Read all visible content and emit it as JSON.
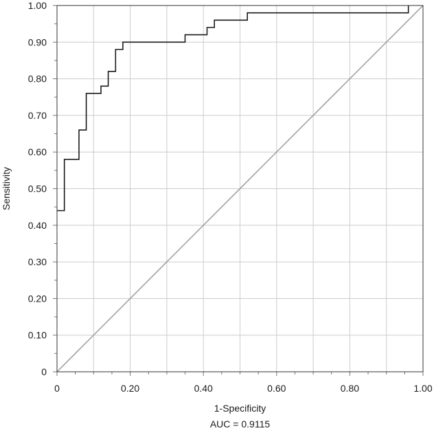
{
  "chart_data": {
    "type": "line",
    "title": "",
    "xlabel": "1-Specificity",
    "ylabel": "Sensitivity",
    "caption": "AUC = 0.9115",
    "xlim": [
      0,
      1
    ],
    "ylim": [
      0,
      1
    ],
    "grid": true,
    "x_ticks": [
      0,
      0.2,
      0.4,
      0.6,
      0.8,
      1.0
    ],
    "x_tick_labels": [
      "0",
      "0.20",
      "0.40",
      "0.60",
      "0.80",
      "1.00"
    ],
    "y_ticks": [
      0,
      0.1,
      0.2,
      0.3,
      0.4,
      0.5,
      0.6,
      0.7,
      0.8,
      0.9,
      1.0
    ],
    "y_tick_labels": [
      "0",
      "0.10",
      "0.20",
      "0.30",
      "0.40",
      "0.50",
      "0.60",
      "0.70",
      "0.80",
      "0.90",
      "1.00"
    ],
    "series": [
      {
        "style": "step",
        "color": "#1a1a1a",
        "points": [
          [
            0.0,
            0.44
          ],
          [
            0.02,
            0.44
          ],
          [
            0.02,
            0.58
          ],
          [
            0.06,
            0.58
          ],
          [
            0.06,
            0.66
          ],
          [
            0.08,
            0.66
          ],
          [
            0.08,
            0.76
          ],
          [
            0.12,
            0.76
          ],
          [
            0.12,
            0.78
          ],
          [
            0.14,
            0.78
          ],
          [
            0.14,
            0.82
          ],
          [
            0.16,
            0.82
          ],
          [
            0.16,
            0.88
          ],
          [
            0.18,
            0.88
          ],
          [
            0.18,
            0.9
          ],
          [
            0.35,
            0.9
          ],
          [
            0.35,
            0.92
          ],
          [
            0.41,
            0.92
          ],
          [
            0.41,
            0.94
          ],
          [
            0.43,
            0.94
          ],
          [
            0.43,
            0.96
          ],
          [
            0.52,
            0.96
          ],
          [
            0.52,
            0.98
          ],
          [
            0.96,
            0.98
          ],
          [
            0.96,
            1.0
          ]
        ]
      },
      {
        "style": "reference",
        "color": "#999999",
        "points": [
          [
            0,
            0
          ],
          [
            1,
            1
          ]
        ]
      }
    ]
  }
}
